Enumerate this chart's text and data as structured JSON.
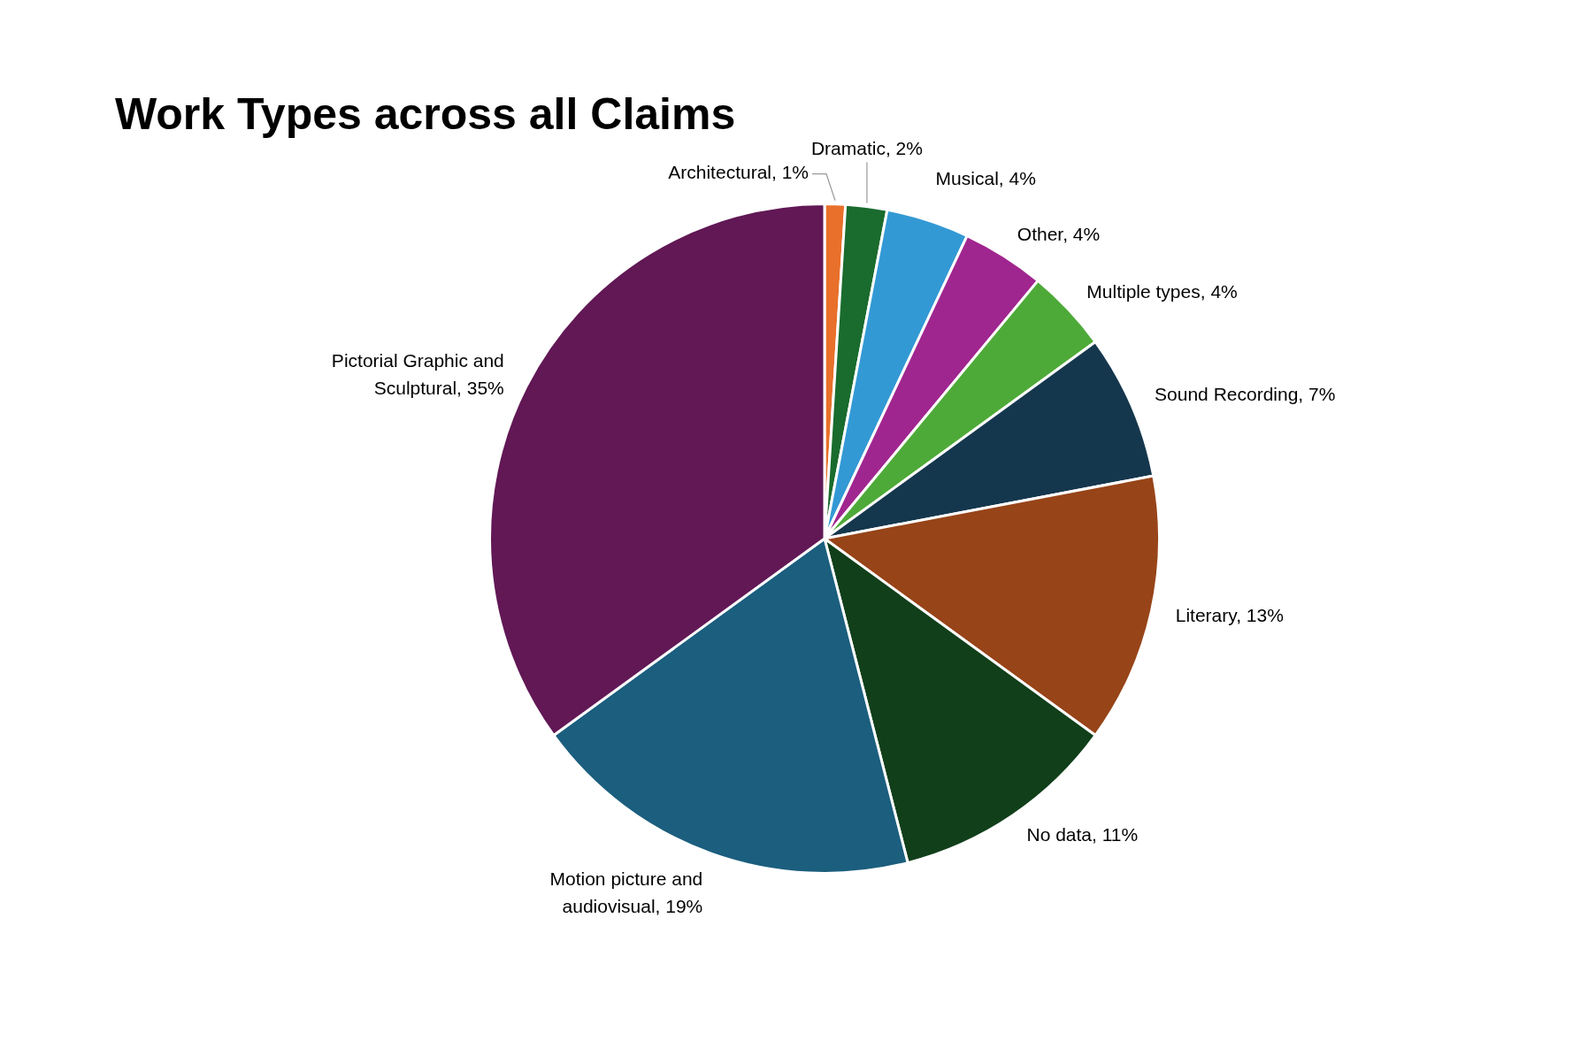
{
  "chart_data": {
    "type": "pie",
    "title": "Work Types across all Claims",
    "categories": [
      "Architectural",
      "Dramatic",
      "Musical",
      "Other",
      "Multiple types",
      "Sound Recording",
      "Literary",
      "No data",
      "Motion picture and audiovisual",
      "Pictorial Graphic and Sculptural"
    ],
    "values": [
      1,
      2,
      4,
      4,
      4,
      7,
      13,
      11,
      19,
      35
    ],
    "colors": [
      "#e8702a",
      "#1a6b2e",
      "#3399d4",
      "#a0268f",
      "#4eaa38",
      "#15374d",
      "#974418",
      "#113f1a",
      "#1b5e7e",
      "#611855"
    ],
    "value_labels": [
      ", 1%",
      ", 2%",
      ", 4%",
      ", 4%",
      ", 4%",
      ", 7%",
      ", 13%",
      ", 11%",
      ", 19%",
      ", 35%"
    ],
    "legend": false
  }
}
